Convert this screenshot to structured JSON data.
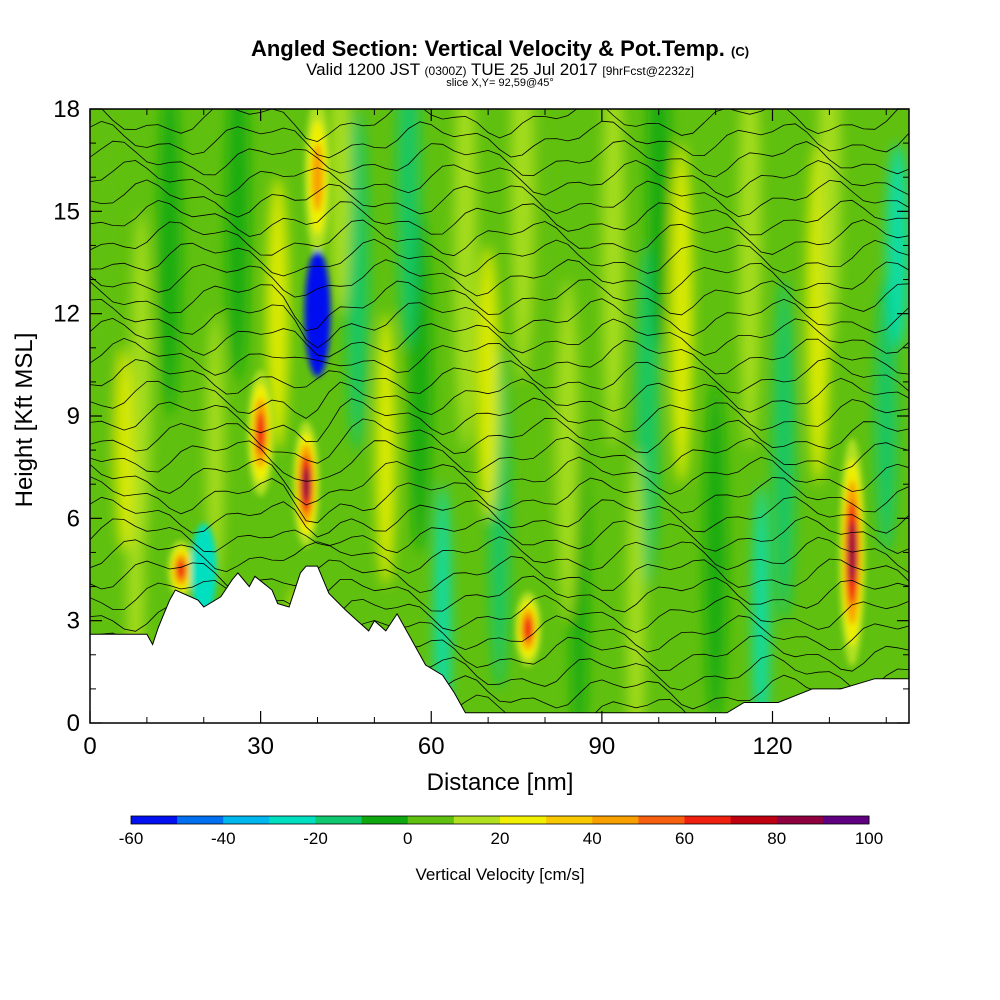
{
  "title": {
    "main": "Angled Section: Vertical Velocity & Pot.Temp.",
    "main_unit": "(C)",
    "valid_prefix": "Valid 1200 JST",
    "valid_utc": "(0300Z)",
    "valid_date": "TUE 25 Jul 2017",
    "forecast": "[9hrFcst@2232z]",
    "slice": "slice X,Y= 92,59@45°"
  },
  "chart_data": {
    "type": "heatmap",
    "xlabel": "Distance [nm]",
    "ylabel": "Height [Kft MSL]",
    "xlim": [
      0,
      144
    ],
    "ylim": [
      0,
      18
    ],
    "x_ticks": [
      0,
      30,
      60,
      90,
      120
    ],
    "y_ticks": [
      0,
      3,
      6,
      9,
      12,
      15,
      18
    ],
    "colorbar": {
      "label": "Vertical Velocity [cm/s]",
      "tick_labels": [
        "-60",
        "-40",
        "-20",
        "0",
        "20",
        "40",
        "60",
        "80",
        "100"
      ],
      "bins": [
        -60,
        -50,
        -40,
        -30,
        -20,
        -10,
        0,
        10,
        20,
        30,
        40,
        50,
        60,
        70,
        80,
        90,
        100
      ],
      "colors": [
        "#0010f0",
        "#0070f0",
        "#00b8f0",
        "#00e0c0",
        "#10c870",
        "#10a810",
        "#60c010",
        "#b0e020",
        "#f0f000",
        "#f8c800",
        "#f8a000",
        "#f86010",
        "#f02010",
        "#c00010",
        "#900040",
        "#600080"
      ]
    },
    "features": [
      {
        "kind": "updraft",
        "x": 38,
        "y_range": [
          5.5,
          8.5
        ],
        "peak": 85
      },
      {
        "kind": "updraft",
        "x": 40,
        "y_range": [
          14,
          18
        ],
        "peak": 40
      },
      {
        "kind": "downdraft",
        "x": 40,
        "y_range": [
          10.5,
          13.5
        ],
        "peak": -60
      },
      {
        "kind": "updraft",
        "x": 134,
        "y_range": [
          2,
          8
        ],
        "peak": 80
      },
      {
        "kind": "updraft",
        "x": 16,
        "y_range": [
          4,
          5
        ],
        "peak": 60
      },
      {
        "kind": "downdraft",
        "x": 20,
        "y_range": [
          3.5,
          5.5
        ],
        "peak": -30
      },
      {
        "kind": "updraft",
        "x": 30,
        "y_range": [
          7,
          10
        ],
        "peak": 60
      },
      {
        "kind": "updraft",
        "x": 77,
        "y_range": [
          2,
          3.5
        ],
        "peak": 60
      }
    ],
    "terrain": [
      [
        0,
        2.6
      ],
      [
        10,
        2.6
      ],
      [
        11,
        2.3
      ],
      [
        12,
        2.8
      ],
      [
        13,
        3.2
      ],
      [
        14,
        3.6
      ],
      [
        15,
        3.9
      ],
      [
        19,
        3.6
      ],
      [
        20,
        3.4
      ],
      [
        23,
        3.7
      ],
      [
        25,
        4.2
      ],
      [
        26,
        4.4
      ],
      [
        28,
        4.0
      ],
      [
        29,
        4.3
      ],
      [
        32,
        3.9
      ],
      [
        33,
        3.5
      ],
      [
        35,
        3.4
      ],
      [
        37,
        4.4
      ],
      [
        38,
        4.6
      ],
      [
        40,
        4.6
      ],
      [
        42,
        3.8
      ],
      [
        45,
        3.3
      ],
      [
        47,
        3.0
      ],
      [
        49,
        2.7
      ],
      [
        50,
        3.0
      ],
      [
        52,
        2.7
      ],
      [
        54,
        3.2
      ],
      [
        56,
        2.6
      ],
      [
        58,
        2.0
      ],
      [
        59,
        1.7
      ],
      [
        62,
        1.4
      ],
      [
        64,
        0.9
      ],
      [
        66,
        0.3
      ],
      [
        70,
        0.3
      ],
      [
        100,
        0.3
      ],
      [
        112,
        0.3
      ],
      [
        115,
        0.6
      ],
      [
        121,
        0.6
      ],
      [
        124,
        0.8
      ],
      [
        127,
        1.0
      ],
      [
        132,
        1.0
      ],
      [
        138,
        1.3
      ],
      [
        144,
        1.3
      ]
    ]
  }
}
